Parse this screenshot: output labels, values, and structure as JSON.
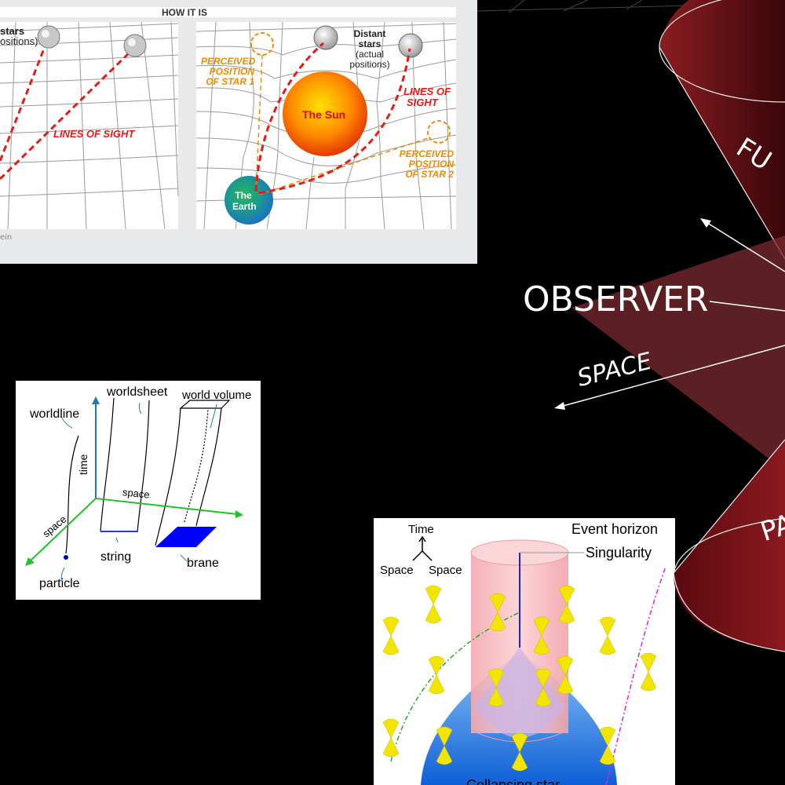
{
  "lensing": {
    "header": "HOW IT IS",
    "stars_label_left": "stars",
    "positions_label_left": "ositions)",
    "lines_of_sight_left": "LINES OF SIGHT",
    "perceived_star1": [
      "PERCEIVED",
      "POSITION",
      "OF STAR 1"
    ],
    "distant_stars": [
      "Distant",
      "stars",
      "(actual",
      "positions)"
    ],
    "sun": "The Sun",
    "lines_of_sight_right": [
      "LINES OF",
      "SIGHT"
    ],
    "perceived_star2": [
      "PERCEIVED",
      "POSITION",
      "OF STAR 2"
    ],
    "earth": [
      "The",
      "Earth"
    ],
    "credit_fragment": "ein",
    "colors": {
      "sight_line": "#e41b17",
      "perceived": "#f08a00",
      "panel_bg": "#e8e9ea",
      "grid": "#9a9a9a"
    }
  },
  "strings": {
    "worldline": "worldline",
    "worldsheet": "worldsheet",
    "world_volume": "world volume",
    "time": "time",
    "space_green": "space",
    "space_diag": "space",
    "string": "string",
    "brane": "brane",
    "particle": "particle",
    "colors": {
      "time_axis": "#1f77b4",
      "space_axis": "#22c02a",
      "brane": "#0000ff",
      "particle": "#0000aa"
    }
  },
  "blackhole": {
    "time": "Time",
    "space_left": "Space",
    "space_right": "Space",
    "event_horizon": "Event horizon",
    "singularity": "Singularity",
    "collapse_fragment": "Collapsing star",
    "colors": {
      "cylinder": "#f7b4b8",
      "collapse": "#1a7ae0",
      "cones": "#f2e600",
      "green_path": "#22aa22",
      "magenta_path": "#dd22dd"
    }
  },
  "cone": {
    "observer": "OBSERVER",
    "space": "SPACE",
    "future_fragment": "FU",
    "past_fragment": "PA",
    "colors": {
      "cone": "#6e0f14",
      "plane": "#7a2a30",
      "text": "#ffffff"
    }
  }
}
